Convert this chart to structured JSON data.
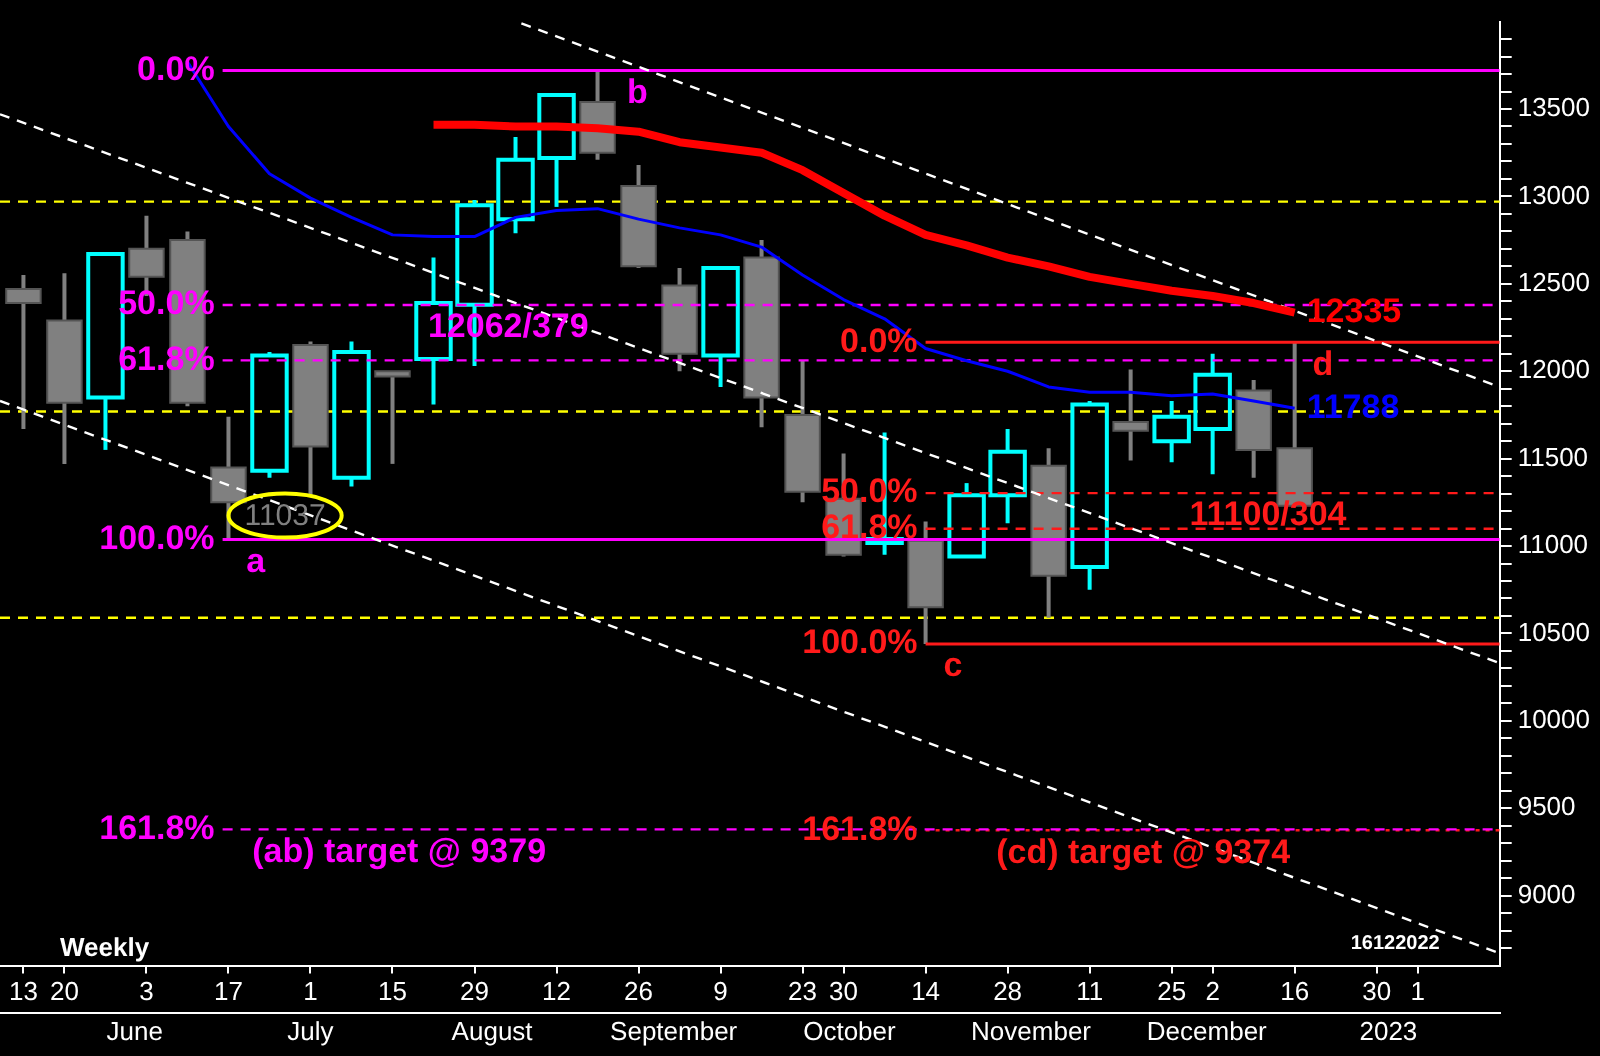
{
  "chart_data": {
    "type": "candlestick",
    "x": [
      "2022-05-13",
      "2022-05-20",
      "2022-05-27",
      "2022-06-03",
      "2022-06-10",
      "2022-06-17",
      "2022-06-24",
      "2022-07-01",
      "2022-07-08",
      "2022-07-15",
      "2022-07-22",
      "2022-07-29",
      "2022-08-05",
      "2022-08-12",
      "2022-08-19",
      "2022-08-26",
      "2022-09-02",
      "2022-09-09",
      "2022-09-16",
      "2022-09-23",
      "2022-09-30",
      "2022-10-07",
      "2022-10-14",
      "2022-10-21",
      "2022-10-28",
      "2022-11-04",
      "2022-11-11",
      "2022-11-18",
      "2022-11-25",
      "2022-12-02",
      "2022-12-09",
      "2022-12-16"
    ],
    "ohlc": [
      [
        12470,
        12550,
        11670,
        12390
      ],
      [
        12290,
        12560,
        11470,
        11820
      ],
      [
        11850,
        12670,
        11550,
        12670
      ],
      [
        12700,
        12890,
        12430,
        12540
      ],
      [
        12750,
        12800,
        11800,
        11820
      ],
      [
        11450,
        11740,
        11037,
        11250
      ],
      [
        11430,
        12110,
        11390,
        12090
      ],
      [
        12150,
        12170,
        11290,
        11570
      ],
      [
        11390,
        12170,
        11340,
        12110
      ],
      [
        12000,
        12000,
        11470,
        11970
      ],
      [
        12070,
        12650,
        11810,
        12390
      ],
      [
        12380,
        12980,
        12030,
        12950
      ],
      [
        12870,
        13340,
        12790,
        13210
      ],
      [
        13220,
        13580,
        12940,
        13580
      ],
      [
        13540,
        13720,
        13210,
        13250
      ],
      [
        13060,
        13180,
        12590,
        12600
      ],
      [
        12490,
        12590,
        12000,
        12100
      ],
      [
        12090,
        12600,
        11910,
        12590
      ],
      [
        12650,
        12750,
        11680,
        11850
      ],
      [
        11750,
        12060,
        11250,
        11310
      ],
      [
        11270,
        11530,
        10940,
        10950
      ],
      [
        11020,
        11650,
        10950,
        11040
      ],
      [
        11030,
        11140,
        10440,
        10650
      ],
      [
        10940,
        11360,
        10940,
        11290
      ],
      [
        11290,
        11670,
        11130,
        11540
      ],
      [
        11460,
        11560,
        10590,
        10830
      ],
      [
        10880,
        11830,
        10750,
        11810
      ],
      [
        11710,
        12010,
        11490,
        11660
      ],
      [
        11600,
        11830,
        11480,
        11740
      ],
      [
        11670,
        12100,
        11410,
        11980
      ],
      [
        11890,
        11950,
        11390,
        11550
      ],
      [
        11560,
        12166,
        11230,
        11230
      ]
    ],
    "colors": [
      "#808080",
      "#808080",
      "#00ffff",
      "#808080",
      "#808080",
      "#808080",
      "#00ffff",
      "#808080",
      "#00ffff",
      "#808080",
      "#00ffff",
      "#00ffff",
      "#00ffff",
      "#00ffff",
      "#808080",
      "#808080",
      "#808080",
      "#00ffff",
      "#808080",
      "#808080",
      "#808080",
      "#00ffff",
      "#808080",
      "#00ffff",
      "#00ffff",
      "#808080",
      "#00ffff",
      "#808080",
      "#00ffff",
      "#00ffff",
      "#808080",
      "#808080"
    ],
    "series": [
      {
        "type": "line",
        "color": "#ff0000",
        "x": [
          "2022-07-22",
          "2022-07-29",
          "2022-08-05",
          "2022-08-12",
          "2022-08-19",
          "2022-08-26",
          "2022-09-02",
          "2022-09-09",
          "2022-09-16",
          "2022-09-23",
          "2022-09-30",
          "2022-10-07",
          "2022-10-14",
          "2022-10-21",
          "2022-10-28",
          "2022-11-04",
          "2022-11-11",
          "2022-11-18",
          "2022-11-25",
          "2022-12-02",
          "2022-12-09",
          "2022-12-16"
        ],
        "values": [
          13410,
          13410,
          13400,
          13400,
          13390,
          13370,
          13310,
          13280,
          13250,
          13150,
          13020,
          12890,
          12780,
          12720,
          12650,
          12600,
          12540,
          12500,
          12460,
          12430,
          12390,
          12335
        ]
      },
      {
        "type": "line",
        "color": "#0000ff",
        "x": [
          "2022-06-10",
          "2022-06-17",
          "2022-06-24",
          "2022-07-01",
          "2022-07-08",
          "2022-07-15",
          "2022-07-22",
          "2022-07-29",
          "2022-08-05",
          "2022-08-12",
          "2022-08-19",
          "2022-08-26",
          "2022-09-02",
          "2022-09-09",
          "2022-09-16",
          "2022-09-23",
          "2022-09-30",
          "2022-10-07",
          "2022-10-14",
          "2022-10-21",
          "2022-10-28",
          "2022-11-04",
          "2022-11-11",
          "2022-11-18",
          "2022-11-25",
          "2022-12-02",
          "2022-12-09",
          "2022-12-16"
        ],
        "values": [
          13770,
          13400,
          13130,
          12990,
          12880,
          12780,
          12770,
          12770,
          12880,
          12920,
          12930,
          12870,
          12820,
          12780,
          12710,
          12550,
          12410,
          12300,
          12130,
          12060,
          12000,
          11910,
          11880,
          11880,
          11860,
          11870,
          11830,
          11788
        ]
      },
      {
        "type": "line",
        "color": "#ffffff",
        "line_style": "dashed",
        "x": [
          "2022-08-06",
          "2023-01-20"
        ],
        "values": [
          13990,
          11910
        ]
      },
      {
        "type": "line",
        "color": "#ffffff",
        "line_style": "dashed",
        "x": [
          "2022-05-09",
          "2023-01-20"
        ],
        "values": [
          13470,
          10330
        ]
      },
      {
        "type": "line",
        "color": "#ffffff",
        "line_style": "dashed",
        "x": [
          "2022-05-09",
          "2023-01-20"
        ],
        "values": [
          11830,
          8670
        ]
      },
      {
        "type": "line",
        "color": "#ff00ff",
        "x": [
          "2022-06-16",
          "2023-01-20"
        ],
        "values": [
          13720,
          13720
        ]
      },
      {
        "type": "line",
        "color": "#ff00ff",
        "line_style": "dashed",
        "x": [
          "2022-06-16",
          "2023-01-20"
        ],
        "values": [
          12379,
          12379
        ]
      },
      {
        "type": "line",
        "color": "#ff00ff",
        "line_style": "dashed",
        "x": [
          "2022-06-16",
          "2023-01-20"
        ],
        "values": [
          12062,
          12062
        ]
      },
      {
        "type": "line",
        "color": "#ff00ff",
        "x": [
          "2022-06-16",
          "2023-01-20"
        ],
        "values": [
          11037,
          11037
        ]
      },
      {
        "type": "line",
        "color": "#ff00ff",
        "line_style": "dashed",
        "x": [
          "2022-06-16",
          "2023-01-20"
        ],
        "values": [
          9379,
          9379
        ]
      },
      {
        "type": "line",
        "color": "#ff1a1a",
        "x": [
          "2022-10-14",
          "2023-01-20"
        ],
        "values": [
          12166,
          12166
        ]
      },
      {
        "type": "line",
        "color": "#ff1a1a",
        "line_style": "dashed",
        "x": [
          "2022-10-14",
          "2023-01-20"
        ],
        "values": [
          11303,
          11303
        ]
      },
      {
        "type": "line",
        "color": "#ff1a1a",
        "line_style": "dashed",
        "x": [
          "2022-10-14",
          "2023-01-20"
        ],
        "values": [
          11099,
          11099
        ]
      },
      {
        "type": "line",
        "color": "#ff1a1a",
        "x": [
          "2022-10-14",
          "2023-01-20"
        ],
        "values": [
          10440,
          10440
        ]
      },
      {
        "type": "line",
        "color": "#ff1a1a",
        "line_style": "dotted",
        "x": [
          "2022-10-14",
          "2023-01-20"
        ],
        "values": [
          9374,
          9374
        ]
      }
    ],
    "xlim": [
      "2022-05-09",
      "2023-01-20"
    ],
    "xticks": [
      {
        "value": "2022-05-13",
        "label": "13"
      },
      {
        "value": "2022-05-20",
        "label": "20"
      },
      {
        "value": "2022-06-03",
        "label": "3"
      },
      {
        "value": "2022-06-17",
        "label": "17"
      },
      {
        "value": "2022-07-01",
        "label": "1"
      },
      {
        "value": "2022-07-15",
        "label": "15"
      },
      {
        "value": "2022-07-29",
        "label": "29"
      },
      {
        "value": "2022-08-12",
        "label": "12"
      },
      {
        "value": "2022-08-26",
        "label": "26"
      },
      {
        "value": "2022-09-09",
        "label": "9"
      },
      {
        "value": "2022-09-23",
        "label": "23"
      },
      {
        "value": "2022-09-30",
        "label": "30"
      },
      {
        "value": "2022-10-14",
        "label": "14"
      },
      {
        "value": "2022-10-28",
        "label": "28"
      },
      {
        "value": "2022-11-11",
        "label": "11"
      },
      {
        "value": "2022-11-25",
        "label": "25"
      },
      {
        "value": "2022-12-02",
        "label": "2"
      },
      {
        "value": "2022-12-16",
        "label": "16"
      },
      {
        "value": "2022-12-30",
        "label": "30"
      },
      {
        "value": "2023-01-06",
        "label": "1"
      }
    ],
    "x2lim": [
      "2022-05-09",
      "2023-01-20"
    ],
    "x2ticks": [
      {
        "value": "2022-06-01",
        "label": "June"
      },
      {
        "value": "2022-07-01",
        "label": "July"
      },
      {
        "value": "2022-08-01",
        "label": "August"
      },
      {
        "value": "2022-09-01",
        "label": "September"
      },
      {
        "value": "2022-10-01",
        "label": "October"
      },
      {
        "value": "2022-11-01",
        "label": "November"
      },
      {
        "value": "2022-12-01",
        "label": "December"
      },
      {
        "value": "2023-01-01",
        "label": "2023"
      }
    ],
    "ylim": [
      8600,
      14000
    ],
    "yticks": [
      {
        "value": 8700,
        "label": null
      },
      {
        "value": 8800,
        "label": null
      },
      {
        "value": 8900,
        "label": null
      },
      9000,
      {
        "value": 9100,
        "label": null
      },
      {
        "value": 9200,
        "label": null
      },
      {
        "value": 9300,
        "label": null
      },
      {
        "value": 9400,
        "label": null
      },
      9500,
      {
        "value": 9600,
        "label": null
      },
      {
        "value": 9700,
        "label": null
      },
      {
        "value": 9800,
        "label": null
      },
      {
        "value": 9900,
        "label": null
      },
      10000,
      {
        "value": 10100,
        "label": null
      },
      {
        "value": 10200,
        "label": null
      },
      {
        "value": 10300,
        "label": null
      },
      {
        "value": 10400,
        "label": null
      },
      10500,
      {
        "value": 10600,
        "label": null
      },
      {
        "value": 10700,
        "label": null
      },
      {
        "value": 10800,
        "label": null
      },
      {
        "value": 10900,
        "label": null
      },
      11000,
      {
        "value": 11100,
        "label": null
      },
      {
        "value": 11200,
        "label": null
      },
      {
        "value": 11300,
        "label": null
      },
      {
        "value": 11400,
        "label": null
      },
      11500,
      {
        "value": 11600,
        "label": null
      },
      {
        "value": 11700,
        "label": null
      },
      {
        "value": 11800,
        "label": null
      },
      {
        "value": 11900,
        "label": null
      },
      12000,
      {
        "value": 12100,
        "label": null
      },
      {
        "value": 12200,
        "label": null
      },
      {
        "value": 12300,
        "label": null
      },
      {
        "value": 12400,
        "label": null
      },
      12500,
      {
        "value": 12600,
        "label": null
      },
      {
        "value": 12700,
        "label": null
      },
      {
        "value": 12800,
        "label": null
      },
      {
        "value": 12900,
        "label": null
      },
      13000,
      {
        "value": 13100,
        "label": null
      },
      {
        "value": 13200,
        "label": null
      },
      {
        "value": 13300,
        "label": null
      },
      {
        "value": 13400,
        "label": null
      },
      13500,
      {
        "value": 13600,
        "label": null
      },
      {
        "value": 13700,
        "label": null
      },
      {
        "value": 13800,
        "label": null
      },
      {
        "value": 13900,
        "label": null
      }
    ],
    "ref_lines": [
      {
        "axis": "y",
        "value": 12970,
        "color": "#ffff00",
        "line_style": "dashed"
      },
      {
        "axis": "y",
        "value": 11770,
        "color": "#ffff00",
        "line_style": "dashed"
      },
      {
        "axis": "y",
        "value": 10590,
        "color": "#ffff00",
        "line_style": "dashed"
      }
    ],
    "annotations": [
      {
        "text": "0.0%",
        "x": "2022-06-16",
        "y": 13720
      },
      {
        "text": "50.0%",
        "x": "2022-06-16",
        "y": 12379
      },
      {
        "text": "61.8%",
        "x": "2022-06-16",
        "y": 12062
      },
      {
        "text": "100.0%",
        "x": "2022-06-16",
        "y": 11037
      },
      {
        "text": "a",
        "x": "2022-06-18",
        "y": 11037
      },
      {
        "text": "b",
        "x": "2022-08-22",
        "y": 13720
      },
      {
        "text": "12062/379",
        "x": "2022-07-19",
        "y": 12379
      },
      {
        "text": "11037",
        "x": "2022-06-17",
        "y": 11037
      },
      {
        "text": "161.8%",
        "x": "2022-06-16",
        "y": 9379
      },
      {
        "text": "(ab) target @ 9379",
        "x": "2022-06-19",
        "y": 9379
      },
      {
        "text": "0.0%",
        "x": "2022-10-14",
        "y": 12166
      },
      {
        "text": "50.0%",
        "x": "2022-10-14",
        "y": 11303
      },
      {
        "text": "61.8%",
        "x": "2022-10-14",
        "y": 11099
      },
      {
        "text": "100.0%",
        "x": "2022-10-14",
        "y": 10440
      },
      {
        "text": "c",
        "x": "2022-10-15",
        "y": 10440
      },
      {
        "text": "d",
        "x": "2022-12-17",
        "y": 12166
      },
      {
        "text": "12335",
        "x": "2022-12-16",
        "y": 12335
      },
      {
        "text": "11788",
        "x": "2022-12-16",
        "y": 11788
      },
      {
        "text": "11100/304",
        "x": "2022-11-26",
        "y": 11303
      },
      {
        "text": "161.8%",
        "x": "2022-10-14",
        "y": 9374
      },
      {
        "text": "(cd) target @ 9374",
        "x": "2022-10-24",
        "y": 9374
      },
      "Weekly",
      "16122022"
    ]
  }
}
